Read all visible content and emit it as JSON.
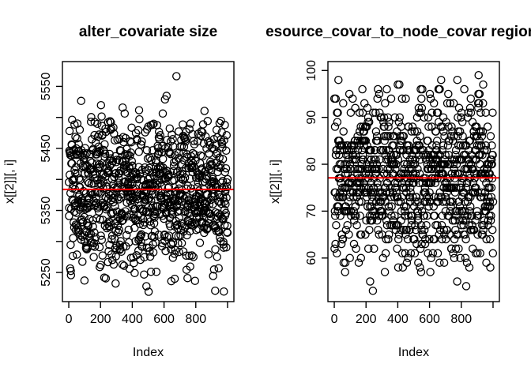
{
  "figure": {
    "background": "#FFFFFF",
    "foreground": "#000000"
  },
  "chart_data": [
    {
      "type": "scatter",
      "title": "alter_covariate size",
      "xlabel": "Index",
      "ylabel": "x[[2]][, i]",
      "xlim": [
        -40,
        1040
      ],
      "ylim": [
        5203,
        5590
      ],
      "x_ticks": [
        0,
        200,
        400,
        600,
        800,
        1000
      ],
      "x_tick_labels": [
        "0",
        "200",
        "400",
        "600",
        "800",
        ""
      ],
      "y_ticks": [
        5250,
        5300,
        5350,
        5400,
        5450,
        5500,
        5550
      ],
      "y_tick_labels": [
        "5250",
        "",
        "5350",
        "",
        "5450",
        "",
        "5550"
      ],
      "grid": false,
      "legend": false,
      "marker": {
        "shape": "open-circle",
        "radius": 4.6,
        "color": "#000000"
      },
      "points": {
        "n": 1000,
        "x_start": 1,
        "x_end": 1000,
        "distribution": "normal",
        "y_mean": 5384,
        "y_sd": 62,
        "y_min": 5215,
        "y_max": 5577,
        "round_y": false,
        "seed": 101
      },
      "mean_line": {
        "value": 5384,
        "color": "#FF0000"
      }
    },
    {
      "type": "scatter",
      "title": "resource_covar_to_node_covar region",
      "xlabel": "Index",
      "ylabel": "x[[2]][, i]",
      "xlim": [
        -40,
        1040
      ],
      "ylim": [
        50.7,
        101.9
      ],
      "x_ticks": [
        0,
        200,
        400,
        600,
        800,
        1000
      ],
      "x_tick_labels": [
        "0",
        "200",
        "400",
        "600",
        "800",
        ""
      ],
      "y_ticks": [
        60,
        70,
        80,
        90,
        100
      ],
      "y_tick_labels": [
        "60",
        "70",
        "80",
        "90",
        "100"
      ],
      "grid": false,
      "legend": false,
      "marker": {
        "shape": "open-circle",
        "radius": 4.6,
        "color": "#000000"
      },
      "points": {
        "n": 1000,
        "x_start": 1,
        "x_end": 1000,
        "distribution": "normal",
        "y_mean": 77.1,
        "y_sd": 8.8,
        "y_min": 53,
        "y_max": 100,
        "round_y": true,
        "seed": 202
      },
      "mean_line": {
        "value": 77.1,
        "color": "#FF0000"
      }
    }
  ]
}
